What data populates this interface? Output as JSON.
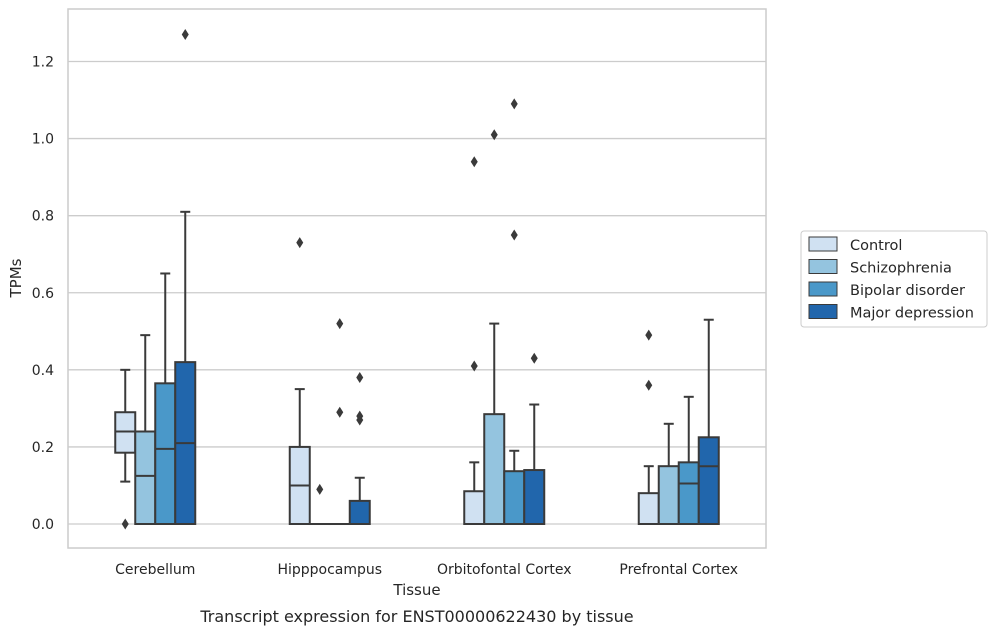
{
  "chart_data": {
    "type": "boxplot",
    "xlabel": "Tissue",
    "ylabel": "TPMs",
    "caption": "Transcript expression for ENST00000622430 by tissue",
    "ylim": [
      -0.06,
      1.34
    ],
    "yticks": [
      "0.0",
      "0.2",
      "0.4",
      "0.6",
      "0.8",
      "1.0",
      "1.2"
    ],
    "ytick_values": [
      0.0,
      0.2,
      0.4,
      0.6,
      0.8,
      1.0,
      1.2
    ],
    "grid": true,
    "legend_placement": "right",
    "categories": [
      "Cerebellum",
      "Hipppocampus",
      "Orbitofontal Cortex",
      "Prefrontal Cortex"
    ],
    "series": [
      {
        "name": "Control",
        "color": "#d0e1f2",
        "boxes": [
          {
            "q1": 0.185,
            "median": 0.24,
            "q3": 0.29,
            "whisker_low": 0.11,
            "whisker_high": 0.4,
            "outliers": [
              0.0
            ]
          },
          {
            "q1": 0.0,
            "median": 0.1,
            "q3": 0.2,
            "whisker_low": 0.0,
            "whisker_high": 0.35,
            "outliers": [
              0.73
            ]
          },
          {
            "q1": 0.0,
            "median": 0.0,
            "q3": 0.085,
            "whisker_low": 0.0,
            "whisker_high": 0.16,
            "outliers": [
              0.41,
              0.94
            ]
          },
          {
            "q1": 0.0,
            "median": 0.0,
            "q3": 0.08,
            "whisker_low": 0.0,
            "whisker_high": 0.15,
            "outliers": [
              0.36,
              0.49
            ]
          }
        ]
      },
      {
        "name": "Schizophrenia",
        "color": "#94c4df",
        "boxes": [
          {
            "q1": 0.0,
            "median": 0.125,
            "q3": 0.24,
            "whisker_low": 0.0,
            "whisker_high": 0.49,
            "outliers": []
          },
          {
            "q1": 0.0,
            "median": 0.0,
            "q3": 0.0,
            "whisker_low": 0.0,
            "whisker_high": 0.0,
            "outliers": [
              0.09
            ]
          },
          {
            "q1": 0.0,
            "median": 0.0,
            "q3": 0.285,
            "whisker_low": 0.0,
            "whisker_high": 0.52,
            "outliers": [
              1.01
            ]
          },
          {
            "q1": 0.0,
            "median": 0.0,
            "q3": 0.15,
            "whisker_low": 0.0,
            "whisker_high": 0.26,
            "outliers": []
          }
        ]
      },
      {
        "name": "Bipolar disorder",
        "color": "#4a98c9",
        "boxes": [
          {
            "q1": 0.0,
            "median": 0.195,
            "q3": 0.365,
            "whisker_low": 0.0,
            "whisker_high": 0.65,
            "outliers": []
          },
          {
            "q1": 0.0,
            "median": 0.0,
            "q3": 0.0,
            "whisker_low": 0.0,
            "whisker_high": 0.0,
            "outliers": [
              0.29,
              0.52
            ]
          },
          {
            "q1": 0.0,
            "median": 0.0,
            "q3": 0.137,
            "whisker_low": 0.0,
            "whisker_high": 0.19,
            "outliers": [
              0.75,
              1.09
            ]
          },
          {
            "q1": 0.0,
            "median": 0.105,
            "q3": 0.16,
            "whisker_low": 0.0,
            "whisker_high": 0.33,
            "outliers": []
          }
        ]
      },
      {
        "name": "Major depression",
        "color": "#2166ac",
        "boxes": [
          {
            "q1": 0.0,
            "median": 0.21,
            "q3": 0.42,
            "whisker_low": 0.0,
            "whisker_high": 0.81,
            "outliers": [
              1.27
            ]
          },
          {
            "q1": 0.0,
            "median": 0.0,
            "q3": 0.06,
            "whisker_low": 0.0,
            "whisker_high": 0.12,
            "outliers": [
              0.27,
              0.28,
              0.38
            ]
          },
          {
            "q1": 0.0,
            "median": 0.0,
            "q3": 0.14,
            "whisker_low": 0.0,
            "whisker_high": 0.31,
            "outliers": [
              0.43
            ]
          },
          {
            "q1": 0.0,
            "median": 0.15,
            "q3": 0.225,
            "whisker_low": 0.0,
            "whisker_high": 0.53,
            "outliers": []
          }
        ]
      }
    ]
  }
}
